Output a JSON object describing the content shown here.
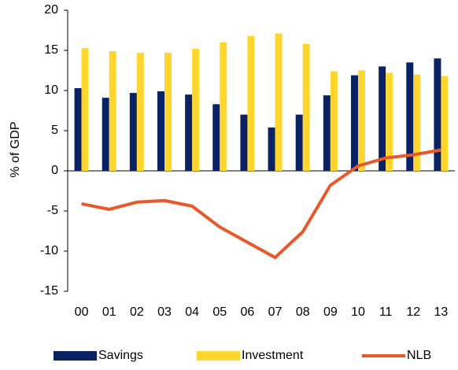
{
  "chart_data": {
    "type": "bar",
    "y_label": "% of GDP",
    "categories": [
      "00",
      "01",
      "02",
      "03",
      "04",
      "05",
      "06",
      "07",
      "08",
      "09",
      "10",
      "11",
      "12",
      "13"
    ],
    "series": [
      {
        "name": "Savings",
        "type": "bar",
        "color": "#0a2264",
        "values": [
          10.3,
          9.1,
          9.7,
          9.9,
          9.5,
          8.3,
          7.0,
          5.4,
          7.0,
          9.4,
          11.9,
          13.0,
          13.5,
          14.0
        ]
      },
      {
        "name": "Investment",
        "type": "bar",
        "color": "#ffd52e",
        "values": [
          15.3,
          14.9,
          14.7,
          14.7,
          15.2,
          16.0,
          16.8,
          17.1,
          15.8,
          12.4,
          12.5,
          12.2,
          12.0,
          11.8
        ]
      },
      {
        "name": "NLB",
        "type": "line",
        "color": "#e8582a",
        "values": [
          -4.1,
          -4.8,
          -3.9,
          -3.7,
          -4.4,
          -7.0,
          -8.9,
          -10.8,
          -7.6,
          -1.8,
          0.6,
          1.6,
          2.0,
          2.6
        ]
      }
    ],
    "ylim": [
      -15,
      20
    ],
    "yticks": [
      -15,
      -10,
      -5,
      0,
      5,
      10,
      15,
      20
    ],
    "grid": false,
    "legend": "bottom"
  }
}
